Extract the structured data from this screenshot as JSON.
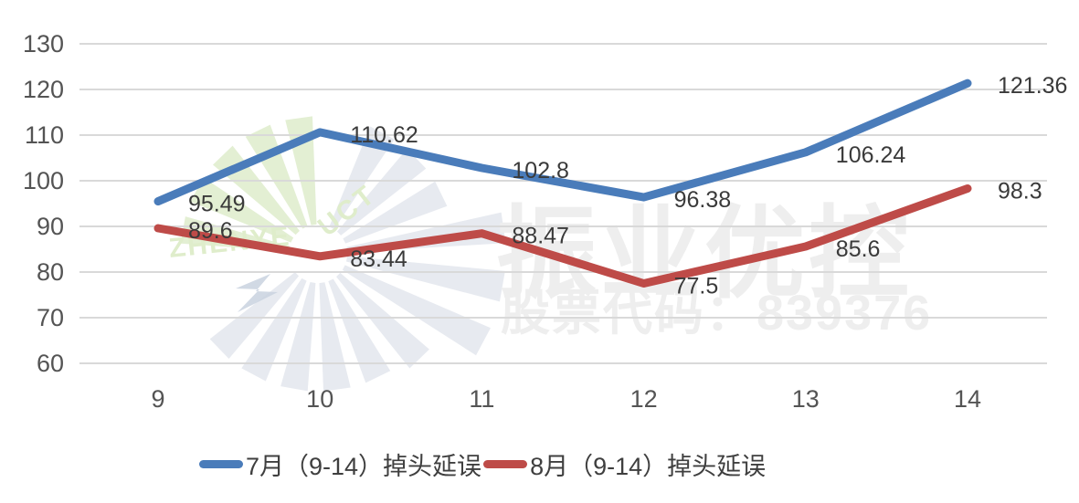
{
  "chart_data": {
    "type": "line",
    "title": "",
    "x": [
      9,
      10,
      11,
      12,
      13,
      14
    ],
    "series": [
      {
        "name": "7月（9-14）掉头延误",
        "color": "#4A7CBA",
        "values": [
          95.49,
          110.62,
          102.8,
          96.38,
          106.24,
          121.36
        ]
      },
      {
        "name": "8月（9-14）掉头延误",
        "color": "#BE4B48",
        "values": [
          89.6,
          83.44,
          88.47,
          77.5,
          85.6,
          98.3
        ]
      }
    ],
    "xlabel": "",
    "ylabel": "",
    "ylim": [
      60,
      130
    ],
    "ytick_step": 10,
    "grid": true,
    "legend_position": "bottom",
    "data_labels_shown": true
  },
  "colors": {
    "gridline": "#d9d9d9",
    "axis_text": "#545454",
    "data_label_text": "#3a3a3a",
    "series_blue": "#4A7CBA",
    "series_red": "#BE4B48",
    "watermark_text": "#eeeeee",
    "watermark_green": "#e3efd3",
    "watermark_gray": "#e7eaf0"
  },
  "watermark": {
    "brand": "振业优控",
    "stock_code": "股票代码：839376",
    "logo_letters_1": "ZHENYE",
    "logo_letters_2": "UCT"
  }
}
